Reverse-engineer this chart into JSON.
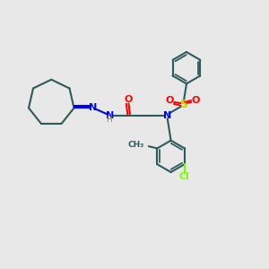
{
  "bg_color": "#e8e8e8",
  "bond_color": "#2d5a5a",
  "N_color": "#0000ff",
  "O_color": "#ff0000",
  "S_color": "#cccc00",
  "Cl_color": "#7cfc00",
  "H_color": "#808080",
  "figsize": [
    3.0,
    3.0
  ],
  "dpi": 100,
  "xlim": [
    0,
    10
  ],
  "ylim": [
    0,
    10
  ]
}
